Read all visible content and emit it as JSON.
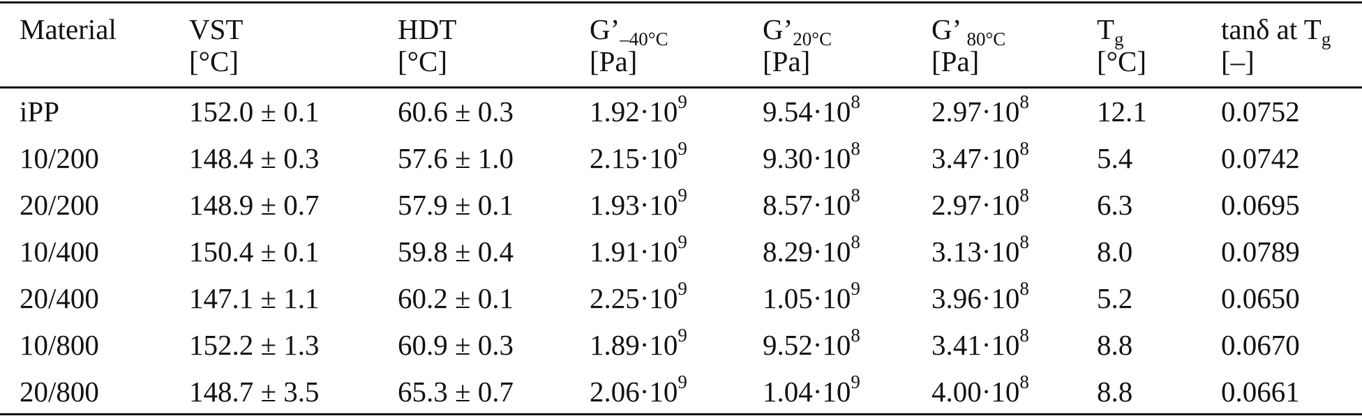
{
  "table": {
    "headers": [
      {
        "main": "Material",
        "sub": "",
        "unit": ""
      },
      {
        "main": "VST",
        "sub": "",
        "unit": "[°C]"
      },
      {
        "main": "HDT",
        "sub": "",
        "unit": "[°C]"
      },
      {
        "main": "G’",
        "sub": "–40°C",
        "unit": "[Pa]"
      },
      {
        "main": "G’",
        "sub": "20°C",
        "unit": "[Pa]"
      },
      {
        "main": "G’ ",
        "sub": "80°C",
        "unit": "[Pa]"
      },
      {
        "main": "T",
        "sub": "g",
        "unit": "[°C]"
      },
      {
        "main": "tanδ at T",
        "sub": "g",
        "unit": "[–]"
      }
    ],
    "rows": [
      {
        "material": "iPP",
        "vst": "152.0 ± 0.1",
        "hdt": "60.6 ± 0.3",
        "g40": {
          "m": "1.92·10",
          "e": "9"
        },
        "g20": {
          "m": "9.54·10",
          "e": "8"
        },
        "g80": {
          "m": "2.97·10",
          "e": "8"
        },
        "tg": "12.1",
        "tand": "0.0752"
      },
      {
        "material": "10/200",
        "vst": "148.4 ± 0.3",
        "hdt": "57.6 ± 1.0",
        "g40": {
          "m": "2.15·10",
          "e": "9"
        },
        "g20": {
          "m": "9.30·10",
          "e": "8"
        },
        "g80": {
          "m": "3.47·10",
          "e": "8"
        },
        "tg": "5.4",
        "tand": "0.0742"
      },
      {
        "material": "20/200",
        "vst": "148.9 ± 0.7",
        "hdt": "57.9 ± 0.1",
        "g40": {
          "m": "1.93·10",
          "e": "9"
        },
        "g20": {
          "m": "8.57·10",
          "e": "8"
        },
        "g80": {
          "m": "2.97·10",
          "e": "8"
        },
        "tg": "6.3",
        "tand": "0.0695"
      },
      {
        "material": "10/400",
        "vst": "150.4 ± 0.1",
        "hdt": "59.8 ± 0.4",
        "g40": {
          "m": "1.91·10",
          "e": "9"
        },
        "g20": {
          "m": "8.29·10",
          "e": "8"
        },
        "g80": {
          "m": "3.13·10",
          "e": "8"
        },
        "tg": "8.0",
        "tand": "0.0789"
      },
      {
        "material": "20/400",
        "vst": "147.1 ± 1.1",
        "hdt": "60.2 ± 0.1",
        "g40": {
          "m": "2.25·10",
          "e": "9"
        },
        "g20": {
          "m": "1.05·10",
          "e": "9"
        },
        "g80": {
          "m": "3.96·10",
          "e": "8"
        },
        "tg": "5.2",
        "tand": "0.0650"
      },
      {
        "material": "10/800",
        "vst": "152.2 ± 1.3",
        "hdt": "60.9 ± 0.3",
        "g40": {
          "m": "1.89·10",
          "e": "9"
        },
        "g20": {
          "m": "9.52·10",
          "e": "8"
        },
        "g80": {
          "m": "3.41·10",
          "e": "8"
        },
        "tg": "8.8",
        "tand": "0.0670"
      },
      {
        "material": "20/800",
        "vst": "148.7 ± 3.5",
        "hdt": "65.3 ± 0.7",
        "g40": {
          "m": "2.06·10",
          "e": "9"
        },
        "g20": {
          "m": "1.04·10",
          "e": "9"
        },
        "g80": {
          "m": "4.00·10",
          "e": "8"
        },
        "tg": "8.8",
        "tand": "0.0661"
      }
    ]
  }
}
